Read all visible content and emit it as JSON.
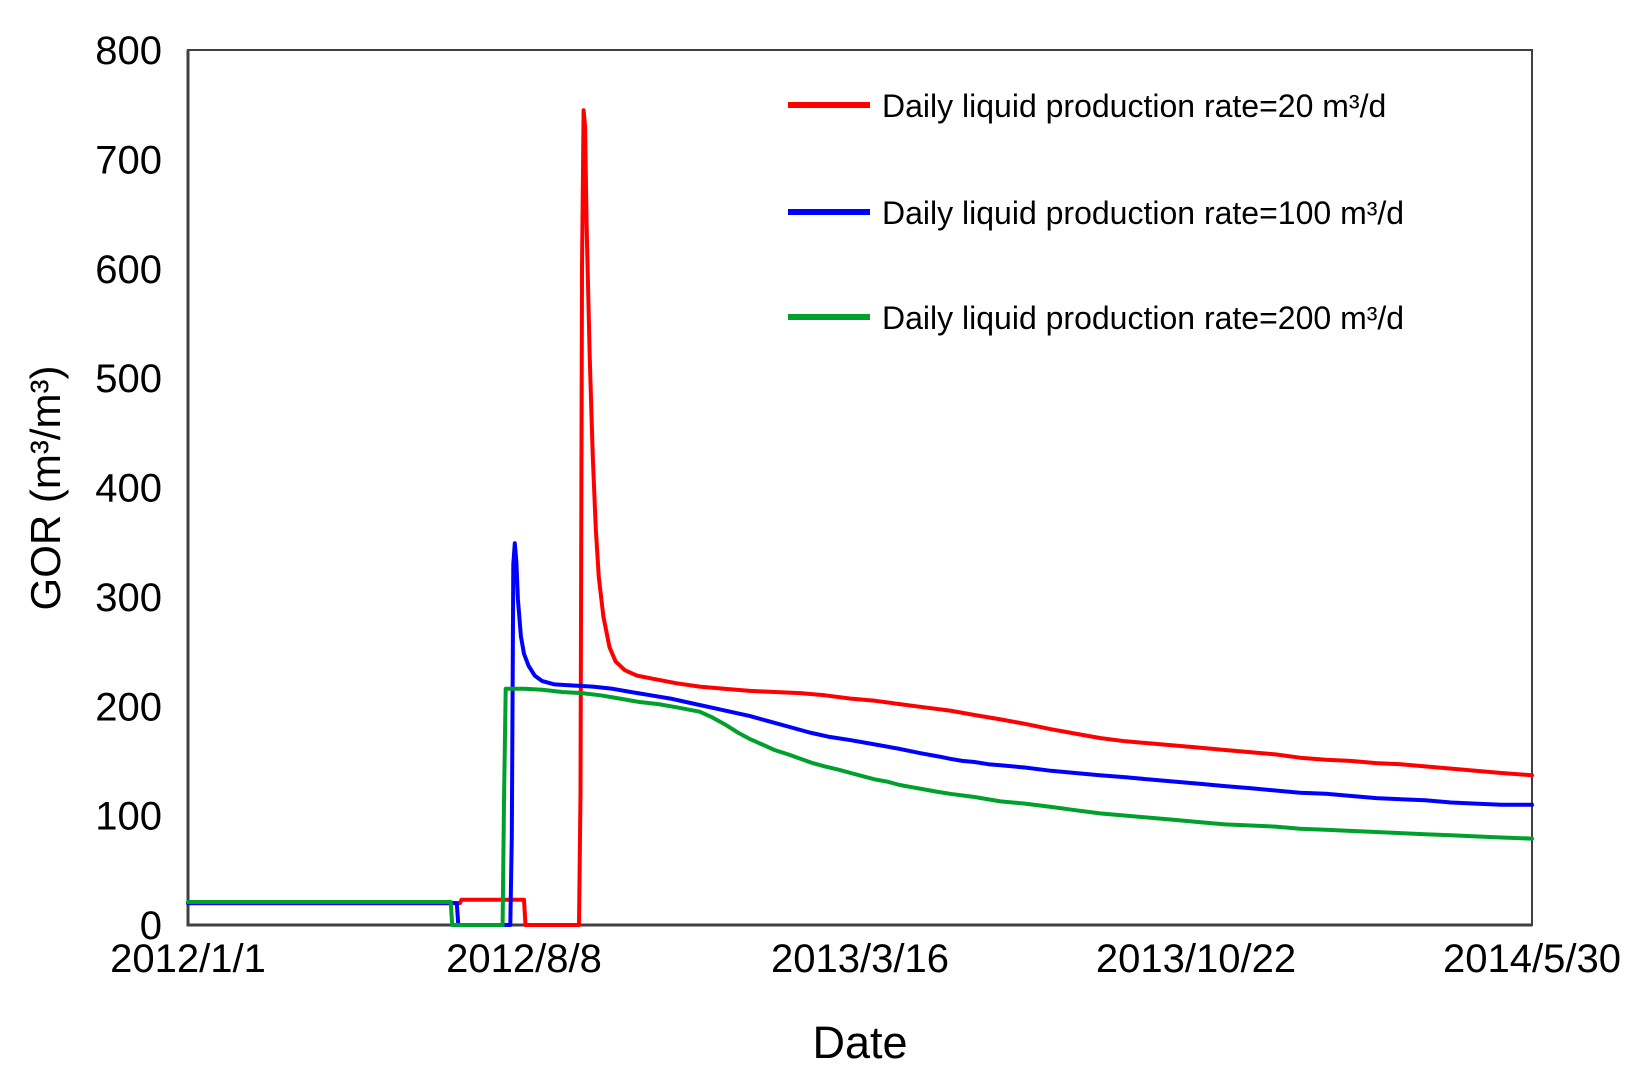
{
  "figure": {
    "background": "#FFFFFF",
    "axis_color": "#404040",
    "text_color": "#000000"
  },
  "chart_data": {
    "type": "line",
    "title": "",
    "xlabel": "Date",
    "ylabel": "GOR (m³/m³)",
    "ylim": [
      0,
      800
    ],
    "yticks": [
      0,
      100,
      200,
      300,
      400,
      500,
      600,
      700,
      800
    ],
    "grid": false,
    "legend_position": "upper-right-inside",
    "x_axis": {
      "unit": "days since 2012/1/1",
      "range_days": [
        0,
        880
      ],
      "tick_days": [
        0,
        220,
        440,
        660,
        880
      ],
      "tick_labels": [
        "2012/1/1",
        "2012/8/8",
        "2013/3/16",
        "2013/10/22",
        "2014/5/30"
      ]
    },
    "series": [
      {
        "name": "Daily liquid production rate=20 m³/d",
        "color": "#FE0000",
        "points_day_value": [
          [
            0,
            20
          ],
          [
            60,
            20
          ],
          [
            120,
            20
          ],
          [
            178,
            20
          ],
          [
            179,
            23
          ],
          [
            220,
            23
          ],
          [
            221,
            0
          ],
          [
            240,
            0
          ],
          [
            256,
            0
          ],
          [
            257,
            120
          ],
          [
            258,
            600
          ],
          [
            259,
            745
          ],
          [
            260,
            730
          ],
          [
            261,
            640
          ],
          [
            263,
            520
          ],
          [
            265,
            430
          ],
          [
            267,
            362
          ],
          [
            269,
            318
          ],
          [
            272,
            282
          ],
          [
            276,
            254
          ],
          [
            280,
            241
          ],
          [
            286,
            233
          ],
          [
            294,
            228
          ],
          [
            305,
            225
          ],
          [
            320,
            221
          ],
          [
            335,
            218
          ],
          [
            351,
            216
          ],
          [
            368,
            214
          ],
          [
            384,
            213
          ],
          [
            401,
            212
          ],
          [
            417,
            210
          ],
          [
            434,
            207
          ],
          [
            450,
            205
          ],
          [
            466,
            202
          ],
          [
            482,
            199
          ],
          [
            499,
            196
          ],
          [
            515,
            192
          ],
          [
            532,
            188
          ],
          [
            548,
            184
          ],
          [
            565,
            179
          ],
          [
            581,
            175
          ],
          [
            597,
            171
          ],
          [
            614,
            168
          ],
          [
            630,
            166
          ],
          [
            647,
            164
          ],
          [
            663,
            162
          ],
          [
            679,
            160
          ],
          [
            696,
            158
          ],
          [
            712,
            156
          ],
          [
            728,
            153
          ],
          [
            745,
            151
          ],
          [
            761,
            150
          ],
          [
            778,
            148
          ],
          [
            794,
            147
          ],
          [
            810,
            145
          ],
          [
            827,
            143
          ],
          [
            843,
            141
          ],
          [
            860,
            139
          ],
          [
            880,
            137
          ]
        ]
      },
      {
        "name": "Daily liquid production rate=100 m³/d",
        "color": "#0000FE",
        "points_day_value": [
          [
            0,
            20
          ],
          [
            60,
            20
          ],
          [
            120,
            20
          ],
          [
            176,
            20
          ],
          [
            177,
            0
          ],
          [
            195,
            0
          ],
          [
            211,
            0
          ],
          [
            212,
            80
          ],
          [
            213,
            330
          ],
          [
            214,
            349
          ],
          [
            215,
            332
          ],
          [
            216,
            298
          ],
          [
            218,
            264
          ],
          [
            220,
            248
          ],
          [
            223,
            237
          ],
          [
            227,
            228
          ],
          [
            232,
            223
          ],
          [
            240,
            220
          ],
          [
            252,
            219
          ],
          [
            265,
            218
          ],
          [
            278,
            216
          ],
          [
            290,
            213
          ],
          [
            303,
            210
          ],
          [
            316,
            207
          ],
          [
            329,
            203
          ],
          [
            342,
            199
          ],
          [
            355,
            195
          ],
          [
            368,
            191
          ],
          [
            381,
            186
          ],
          [
            394,
            181
          ],
          [
            407,
            176
          ],
          [
            420,
            172
          ],
          [
            434,
            169
          ],
          [
            450,
            165
          ],
          [
            466,
            161
          ],
          [
            480,
            157
          ],
          [
            492,
            154
          ],
          [
            499,
            152
          ],
          [
            507,
            150
          ],
          [
            515,
            149
          ],
          [
            524,
            147
          ],
          [
            532,
            146
          ],
          [
            548,
            144
          ],
          [
            565,
            141
          ],
          [
            581,
            139
          ],
          [
            597,
            137
          ],
          [
            614,
            135
          ],
          [
            630,
            133
          ],
          [
            647,
            131
          ],
          [
            663,
            129
          ],
          [
            679,
            127
          ],
          [
            696,
            125
          ],
          [
            712,
            123
          ],
          [
            728,
            121
          ],
          [
            745,
            120
          ],
          [
            761,
            118
          ],
          [
            778,
            116
          ],
          [
            794,
            115
          ],
          [
            810,
            114
          ],
          [
            827,
            112
          ],
          [
            843,
            111
          ],
          [
            860,
            110
          ],
          [
            880,
            110
          ]
        ]
      },
      {
        "name": "Daily liquid production rate=200 m³/d",
        "color": "#00A02C",
        "points_day_value": [
          [
            0,
            21
          ],
          [
            60,
            21
          ],
          [
            120,
            21
          ],
          [
            172,
            21
          ],
          [
            173,
            0
          ],
          [
            190,
            0
          ],
          [
            206,
            0
          ],
          [
            207,
            120
          ],
          [
            208,
            216
          ],
          [
            220,
            216
          ],
          [
            232,
            215
          ],
          [
            245,
            213
          ],
          [
            258,
            212
          ],
          [
            270,
            210
          ],
          [
            283,
            207
          ],
          [
            295,
            204
          ],
          [
            308,
            202
          ],
          [
            320,
            199
          ],
          [
            335,
            195
          ],
          [
            343,
            190
          ],
          [
            352,
            183
          ],
          [
            360,
            176
          ],
          [
            368,
            170
          ],
          [
            376,
            165
          ],
          [
            384,
            160
          ],
          [
            393,
            156
          ],
          [
            401,
            152
          ],
          [
            409,
            148
          ],
          [
            417,
            145
          ],
          [
            426,
            142
          ],
          [
            434,
            139
          ],
          [
            442,
            136
          ],
          [
            450,
            133
          ],
          [
            458,
            131
          ],
          [
            466,
            128
          ],
          [
            474,
            126
          ],
          [
            482,
            124
          ],
          [
            490,
            122
          ],
          [
            499,
            120
          ],
          [
            515,
            117
          ],
          [
            532,
            113
          ],
          [
            548,
            111
          ],
          [
            565,
            108
          ],
          [
            581,
            105
          ],
          [
            597,
            102
          ],
          [
            614,
            100
          ],
          [
            630,
            98
          ],
          [
            647,
            96
          ],
          [
            663,
            94
          ],
          [
            679,
            92
          ],
          [
            696,
            91
          ],
          [
            712,
            90
          ],
          [
            728,
            88
          ],
          [
            745,
            87
          ],
          [
            761,
            86
          ],
          [
            778,
            85
          ],
          [
            794,
            84
          ],
          [
            810,
            83
          ],
          [
            827,
            82
          ],
          [
            843,
            81
          ],
          [
            860,
            80
          ],
          [
            880,
            79
          ]
        ]
      }
    ]
  }
}
